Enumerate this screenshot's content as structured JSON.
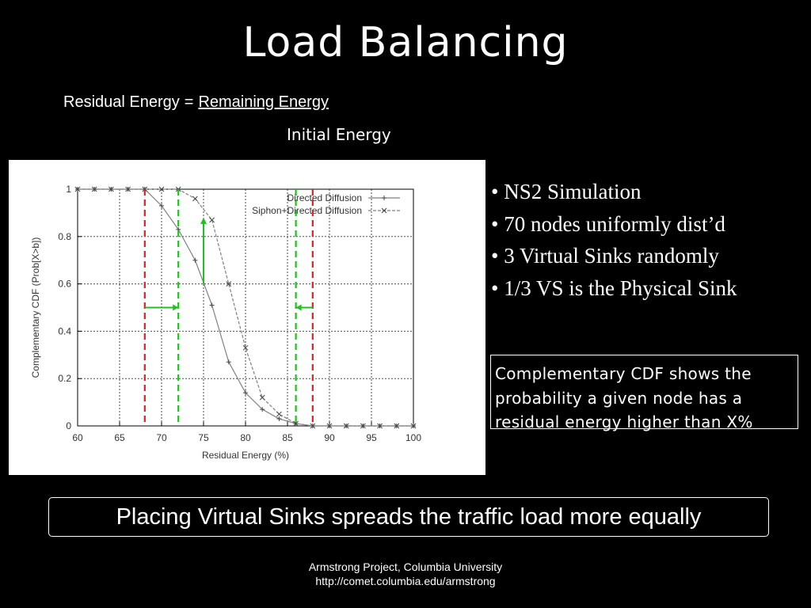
{
  "slide": {
    "title": "Load Balancing",
    "formula": {
      "lhs": "Residual Energy",
      "equals": "=",
      "numerator": "Remaining Energy",
      "denominator": "Initial Energy"
    },
    "bullets": [
      "• NS2 Simulation",
      "• 70 nodes uniformly dist’d",
      "• 3 Virtual Sinks randomly",
      "• 1/3 VS is the Physical Sink"
    ],
    "note": "Complementary CDF shows the probability a given node has a residual energy higher than X%",
    "conclusion": "Placing Virtual Sinks spreads the traffic load more equally",
    "footer": {
      "line1": "Armstrong Project, Columbia University",
      "line2": "http://comet.columbia.edu/armstrong"
    }
  },
  "colors": {
    "background": "#000000",
    "text": "#ffffff",
    "red_marker": "#e02020",
    "green_marker": "#20c020",
    "series_line": "#808080"
  },
  "chart_data": {
    "type": "line",
    "title": "",
    "xlabel": "Residual Energy (%)",
    "ylabel": "Complementary CDF (Prob[X>b])",
    "xlim": [
      60,
      100
    ],
    "ylim": [
      0,
      1
    ],
    "xticks": [
      60,
      65,
      70,
      75,
      80,
      85,
      90,
      95,
      100
    ],
    "yticks": [
      0,
      0.2,
      0.4,
      0.6,
      0.8,
      1
    ],
    "grid": true,
    "legend_position": "top-right",
    "series": [
      {
        "name": "Directed Diffusion",
        "marker": "+",
        "dash": "solid",
        "points": [
          [
            60,
            1
          ],
          [
            62,
            1
          ],
          [
            64,
            1
          ],
          [
            66,
            1
          ],
          [
            68,
            1
          ],
          [
            70,
            0.93
          ],
          [
            72,
            0.83
          ],
          [
            74,
            0.7
          ],
          [
            76,
            0.51
          ],
          [
            78,
            0.27
          ],
          [
            80,
            0.14
          ],
          [
            82,
            0.07
          ],
          [
            84,
            0.03
          ],
          [
            86,
            0.01
          ],
          [
            88,
            0
          ],
          [
            90,
            0
          ],
          [
            92,
            0
          ],
          [
            94,
            0
          ],
          [
            96,
            0
          ],
          [
            98,
            0
          ],
          [
            100,
            0
          ]
        ]
      },
      {
        "name": "Siphon+Directed Diffusion",
        "marker": "x",
        "dash": "dashed",
        "points": [
          [
            60,
            1
          ],
          [
            62,
            1
          ],
          [
            64,
            1
          ],
          [
            66,
            1
          ],
          [
            68,
            1
          ],
          [
            70,
            1
          ],
          [
            72,
            1
          ],
          [
            74,
            0.96
          ],
          [
            76,
            0.87
          ],
          [
            78,
            0.6
          ],
          [
            80,
            0.33
          ],
          [
            82,
            0.12
          ],
          [
            84,
            0.05
          ],
          [
            86,
            0.01
          ],
          [
            88,
            0
          ],
          [
            90,
            0
          ],
          [
            92,
            0
          ],
          [
            94,
            0
          ],
          [
            96,
            0
          ],
          [
            98,
            0
          ],
          [
            100,
            0
          ]
        ]
      }
    ],
    "annotations": {
      "red_vlines_x": [
        68,
        88
      ],
      "green_vlines_x": [
        72,
        86
      ],
      "horizontal_arrows": [
        {
          "from_x": 68,
          "to_x": 72,
          "y": 0.5
        },
        {
          "from_x": 88,
          "to_x": 86,
          "y": 0.5
        }
      ],
      "vertical_arrow": {
        "x": 75,
        "from_y": 0.6,
        "to_y": 0.88
      }
    }
  }
}
